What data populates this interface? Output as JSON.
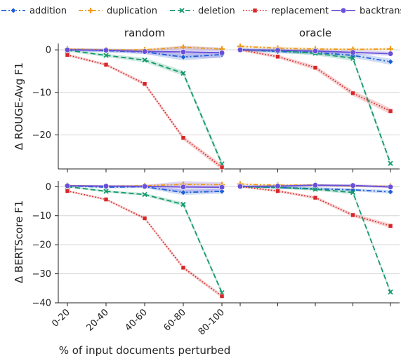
{
  "chart_data": {
    "type": "line",
    "categories": [
      "0-20",
      "20-40",
      "40-60",
      "60-80",
      "80-100"
    ],
    "xlabel": "% of input documents perturbed",
    "legend": {
      "placement": "top",
      "entries": [
        "addition",
        "duplication",
        "deletion",
        "replacement",
        "backtranslation"
      ]
    },
    "series_styles": {
      "addition": {
        "color": "#1f5fd6",
        "dash": "7 3 2 3",
        "marker": "diamond"
      },
      "duplication": {
        "color": "#f09a1a",
        "dash": "6 3 2 3 2 3",
        "marker": "plus"
      },
      "deletion": {
        "color": "#159a6b",
        "dash": "7 4",
        "marker": "x"
      },
      "replacement": {
        "color": "#d62728",
        "dash": "1.5 2.5",
        "marker": "square"
      },
      "backtranslation": {
        "color": "#6a4fd8",
        "dash": "",
        "marker": "circle"
      }
    },
    "grid": true,
    "panels": [
      {
        "row": 0,
        "col": 0,
        "title": "random",
        "ylabel": "Δ ROUGE-Avg F1",
        "ylim": [
          -28,
          1.5
        ],
        "yticks": [
          0,
          -10,
          -20
        ],
        "xticklabels": false,
        "series": [
          {
            "name": "addition",
            "values": [
              0.1,
              -0.2,
              -0.5,
              -1.7,
              -1.1
            ],
            "band": [
              0.3,
              0.4,
              0.5,
              0.8,
              0.7
            ]
          },
          {
            "name": "duplication",
            "values": [
              0.2,
              0.0,
              0.0,
              0.6,
              0.2
            ],
            "band": [
              0.2,
              0.2,
              0.3,
              0.4,
              0.3
            ]
          },
          {
            "name": "deletion",
            "values": [
              -0.1,
              -1.3,
              -2.4,
              -5.5,
              -26.8
            ],
            "band": [
              0.3,
              0.4,
              0.5,
              0.6,
              0.7
            ]
          },
          {
            "name": "replacement",
            "values": [
              -1.2,
              -3.5,
              -8.0,
              -20.7,
              -27.6
            ],
            "band": [
              0.3,
              0.3,
              0.4,
              0.5,
              0.6
            ]
          },
          {
            "name": "backtranslation",
            "values": [
              0.0,
              -0.1,
              -0.4,
              -0.5,
              -0.7
            ],
            "band": [
              0.3,
              0.4,
              0.5,
              1.4,
              1.2
            ]
          }
        ]
      },
      {
        "row": 0,
        "col": 1,
        "title": "oracle",
        "ylabel": "",
        "ylim": [
          -28,
          1.5
        ],
        "yticks": [
          0,
          -10,
          -20
        ],
        "xticklabels": false,
        "series": [
          {
            "name": "addition",
            "values": [
              0.1,
              -0.4,
              -0.6,
              -1.3,
              -2.8
            ],
            "band": [
              0.3,
              0.4,
              0.5,
              0.6,
              0.7
            ]
          },
          {
            "name": "duplication",
            "values": [
              0.8,
              0.4,
              0.2,
              0.1,
              0.2
            ],
            "band": [
              0.3,
              0.3,
              0.3,
              0.3,
              0.3
            ]
          },
          {
            "name": "deletion",
            "values": [
              0.0,
              -0.2,
              -0.8,
              -2.0,
              -26.7
            ],
            "band": [
              0.3,
              0.4,
              0.5,
              0.6,
              0.7
            ]
          },
          {
            "name": "replacement",
            "values": [
              0.0,
              -1.6,
              -4.2,
              -10.2,
              -14.4
            ],
            "band": [
              0.3,
              0.4,
              0.5,
              0.6,
              0.7
            ]
          },
          {
            "name": "backtranslation",
            "values": [
              0.0,
              -0.1,
              -0.3,
              -0.6,
              -0.9
            ],
            "band": [
              0.3,
              0.4,
              0.4,
              0.5,
              0.5
            ]
          }
        ]
      },
      {
        "row": 1,
        "col": 0,
        "title": "",
        "ylabel": "Δ BERTScore F1",
        "ylim": [
          -40,
          2
        ],
        "yticks": [
          0,
          -10,
          -20,
          -30,
          -40
        ],
        "xticklabels": true,
        "series": [
          {
            "name": "addition",
            "values": [
              0.3,
              -0.2,
              0.0,
              -2.0,
              -1.6
            ],
            "band": [
              0.3,
              0.4,
              0.5,
              0.9,
              0.8
            ]
          },
          {
            "name": "duplication",
            "values": [
              0.4,
              0.2,
              0.3,
              0.8,
              0.7
            ],
            "band": [
              0.2,
              0.2,
              0.3,
              0.4,
              0.3
            ]
          },
          {
            "name": "deletion",
            "values": [
              0.0,
              -1.6,
              -2.7,
              -6.1,
              -36.5
            ],
            "band": [
              0.3,
              0.4,
              0.5,
              0.7,
              0.8
            ]
          },
          {
            "name": "replacement",
            "values": [
              -1.5,
              -4.4,
              -10.9,
              -27.9,
              -37.7
            ],
            "band": [
              0.3,
              0.4,
              0.5,
              0.6,
              0.6
            ]
          },
          {
            "name": "backtranslation",
            "values": [
              0.3,
              0.2,
              0.1,
              -0.1,
              -0.2
            ],
            "band": [
              0.3,
              0.4,
              0.5,
              2.0,
              1.7
            ]
          }
        ]
      },
      {
        "row": 1,
        "col": 1,
        "title": "",
        "ylabel": "",
        "ylim": [
          -40,
          2
        ],
        "yticks": [
          0,
          -10,
          -20,
          -30,
          -40
        ],
        "xticklabels": true,
        "series": [
          {
            "name": "addition",
            "values": [
              0.2,
              -0.3,
              -0.7,
              -1.1,
              -1.8
            ],
            "band": [
              0.3,
              0.4,
              0.5,
              0.5,
              0.6
            ]
          },
          {
            "name": "duplication",
            "values": [
              0.9,
              0.5,
              0.6,
              0.2,
              0.2
            ],
            "band": [
              0.3,
              0.3,
              0.3,
              0.3,
              0.3
            ]
          },
          {
            "name": "deletion",
            "values": [
              0.0,
              -0.3,
              -0.9,
              -2.0,
              -36.3
            ],
            "band": [
              0.3,
              0.4,
              0.5,
              0.6,
              0.7
            ]
          },
          {
            "name": "replacement",
            "values": [
              0.0,
              -1.5,
              -3.8,
              -9.8,
              -13.5
            ],
            "band": [
              0.3,
              0.4,
              0.5,
              0.6,
              0.7
            ]
          },
          {
            "name": "backtranslation",
            "values": [
              0.1,
              0.2,
              0.5,
              0.4,
              -0.1
            ],
            "band": [
              0.3,
              0.4,
              0.4,
              0.5,
              0.5
            ]
          }
        ]
      }
    ]
  }
}
